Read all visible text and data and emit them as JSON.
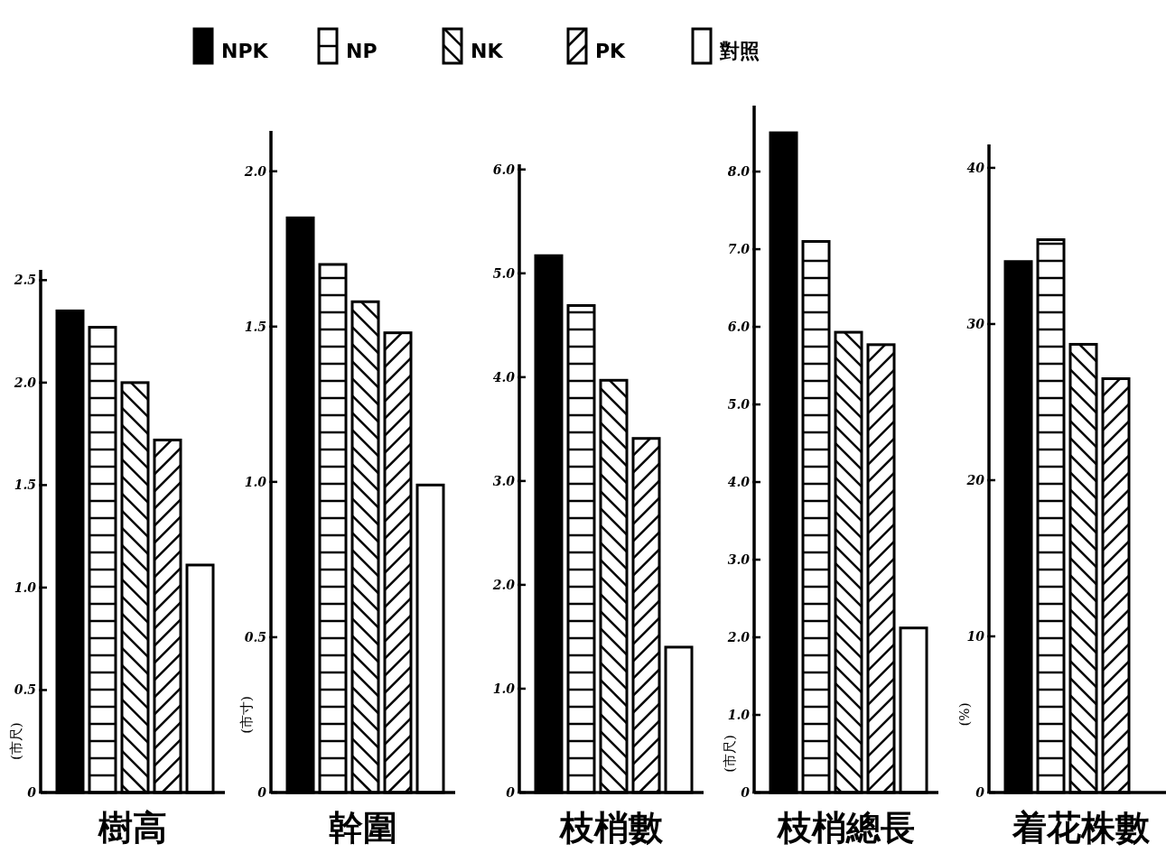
{
  "chart_data": [
    {
      "type": "bar",
      "xlabel": "樹高",
      "ylabel": "(市尺)",
      "categories": [
        null
      ],
      "legend": "top",
      "ylim": [
        0,
        2.55
      ],
      "yticks": [
        0,
        0.5,
        {
          "value": 1,
          "label": "1.0"
        },
        1.5,
        {
          "value": 2,
          "label": "2.0"
        },
        2.5
      ],
      "series": [
        {
          "name": "NPK",
          "color": "#000000",
          "values": [
            2.35
          ]
        },
        {
          "name": "NP",
          "color": "#ffffff",
          "values": [
            2.27
          ]
        },
        {
          "name": "NK",
          "color": "#ffffff",
          "values": [
            2.0
          ]
        },
        {
          "name": "PK",
          "color": "#ffffff",
          "values": [
            1.72
          ]
        },
        {
          "name": "對照",
          "color": "#ffffff",
          "values": [
            1.11
          ]
        }
      ]
    },
    {
      "type": "bar",
      "xlabel": "幹圍",
      "ylabel": "(市寸)",
      "categories": [
        null
      ],
      "ylim": [
        0,
        2.13
      ],
      "yticks": [
        0,
        0.5,
        {
          "value": 1,
          "label": "1.0"
        },
        1.5,
        {
          "value": 2,
          "label": "2.0"
        }
      ],
      "series": [
        {
          "color": "#000000",
          "values": [
            1.85
          ]
        },
        {
          "color": "#ffffff",
          "values": [
            1.7
          ]
        },
        {
          "color": "#ffffff",
          "values": [
            1.58
          ]
        },
        {
          "color": "#ffffff",
          "values": [
            1.48
          ]
        },
        {
          "color": "#ffffff",
          "values": [
            0.99
          ]
        }
      ]
    },
    {
      "type": "bar",
      "xlabel": "枝梢數",
      "categories": [
        null
      ],
      "ylim": [
        0,
        6.05
      ],
      "yticks": [
        0,
        {
          "value": 1,
          "label": "1.0"
        },
        {
          "value": 2,
          "label": "2.0"
        },
        {
          "value": 3,
          "label": "3.0"
        },
        {
          "value": 4,
          "label": "4.0"
        },
        {
          "value": 5,
          "label": "5.0"
        },
        {
          "value": 6,
          "label": "6.0"
        }
      ],
      "series": [
        {
          "color": "#000000",
          "values": [
            5.17
          ]
        },
        {
          "color": "#ffffff",
          "values": [
            4.69
          ]
        },
        {
          "color": "#ffffff",
          "values": [
            3.97
          ]
        },
        {
          "color": "#ffffff",
          "values": [
            3.41
          ]
        },
        {
          "color": "#ffffff",
          "values": [
            1.4
          ]
        }
      ]
    },
    {
      "type": "bar",
      "xlabel": "枝梢總長",
      "ylabel": "(市尺)",
      "categories": [
        null
      ],
      "ylim": [
        0,
        8.85
      ],
      "yticks": [
        0,
        {
          "value": 1,
          "label": "1.0"
        },
        {
          "value": 2,
          "label": "2.0"
        },
        {
          "value": 3,
          "label": "3.0"
        },
        {
          "value": 4,
          "label": "4.0"
        },
        {
          "value": 5,
          "label": "5.0"
        },
        {
          "value": 6,
          "label": "6.0"
        },
        {
          "value": 7,
          "label": "7.0"
        },
        {
          "value": 8,
          "label": "8.0"
        }
      ],
      "series": [
        {
          "color": "#000000",
          "values": [
            8.5
          ]
        },
        {
          "color": "#ffffff",
          "values": [
            7.1
          ]
        },
        {
          "color": "#ffffff",
          "values": [
            5.93
          ]
        },
        {
          "color": "#ffffff",
          "values": [
            5.77
          ]
        },
        {
          "color": "#ffffff",
          "values": [
            2.12
          ]
        }
      ]
    },
    {
      "type": "bar",
      "xlabel": "着花株數",
      "ylabel": "(%)",
      "categories": [
        null
      ],
      "ylim": [
        0,
        41.5
      ],
      "yticks": [
        0,
        10,
        20,
        30,
        40
      ],
      "series": [
        {
          "color": "#000000",
          "values": [
            34.0
          ]
        },
        {
          "color": "#ffffff",
          "values": [
            35.4
          ]
        },
        {
          "color": "#ffffff",
          "values": [
            28.7
          ]
        },
        {
          "color": "#ffffff",
          "values": [
            26.5
          ]
        },
        {
          "color": "#ffffff",
          "values": [
            null
          ]
        }
      ]
    }
  ]
}
